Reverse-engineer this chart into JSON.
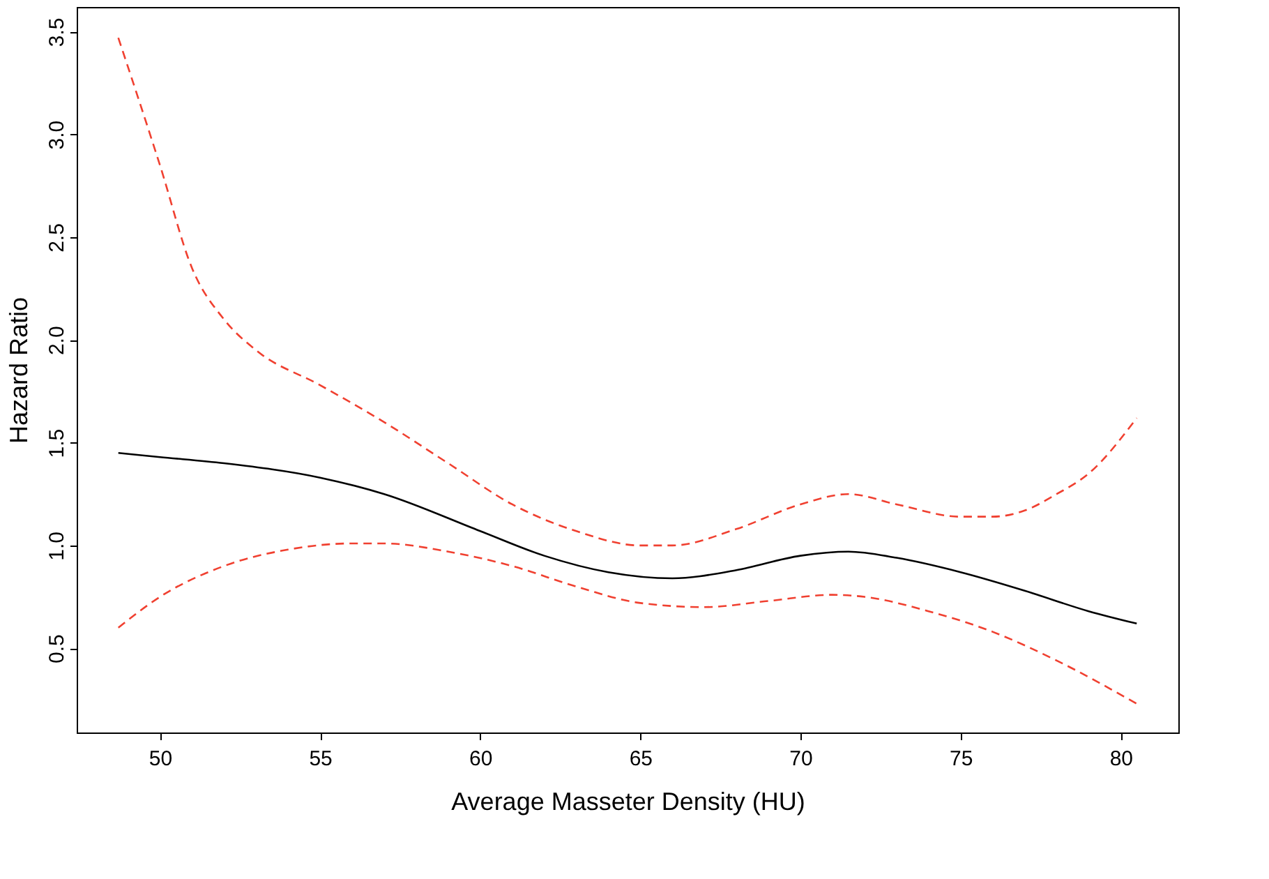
{
  "chart_data": {
    "type": "line",
    "xlabel": "Average Masseter Density (HU)",
    "ylabel": "Hazard Ratio",
    "xlim": [
      47.4,
      81.8
    ],
    "ylim": [
      0.09,
      3.62
    ],
    "xticks": [
      50,
      55,
      60,
      65,
      70,
      75,
      80
    ],
    "yticks": [
      0.5,
      {
        "value": 1,
        "label": "1.0"
      },
      1.5,
      {
        "value": 2,
        "label": "2.0"
      },
      2.5,
      {
        "value": 3,
        "label": "3.0"
      },
      3.5
    ],
    "grid": false,
    "marker": "none",
    "series": [
      {
        "color": "#000000",
        "line_style": "solid",
        "x": [
          48.7,
          50,
          52,
          55,
          57,
          60,
          62,
          64,
          66,
          68,
          70,
          71.5,
          73,
          75,
          77,
          79,
          80.5
        ],
        "values": [
          1.45,
          1.43,
          1.4,
          1.33,
          1.25,
          1.07,
          0.95,
          0.87,
          0.84,
          0.88,
          0.95,
          0.97,
          0.94,
          0.87,
          0.78,
          0.68,
          0.62
        ]
      },
      {
        "color": "#f04030",
        "line_style": "dashed",
        "x": [
          48.7,
          50,
          51,
          52,
          53,
          55,
          57,
          59,
          61,
          63,
          65,
          66,
          68,
          70,
          71.5,
          73,
          75,
          76,
          77,
          78,
          79,
          80.5
        ],
        "values": [
          3.47,
          2.85,
          2.35,
          2.1,
          1.95,
          1.78,
          1.6,
          1.4,
          1.2,
          1.07,
          1.0,
          1.0,
          1.08,
          1.2,
          1.25,
          1.2,
          1.14,
          1.14,
          1.17,
          1.25,
          1.35,
          1.62
        ]
      },
      {
        "color": "#f04030",
        "line_style": "dashed",
        "x": [
          48.7,
          50,
          52,
          54,
          56,
          57,
          59,
          61,
          63,
          65,
          67,
          69,
          71,
          72,
          74,
          76,
          78,
          80.5
        ],
        "values": [
          0.6,
          0.75,
          0.9,
          0.98,
          1.01,
          1.01,
          0.97,
          0.9,
          0.8,
          0.72,
          0.7,
          0.73,
          0.76,
          0.75,
          0.68,
          0.58,
          0.44,
          0.23
        ]
      }
    ]
  }
}
